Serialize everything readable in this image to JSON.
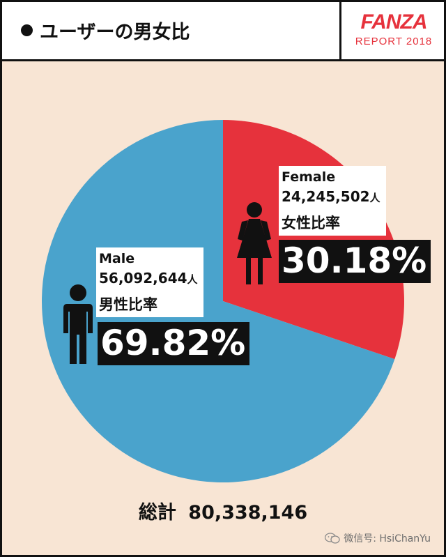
{
  "header": {
    "title": "ユーザーの男女比",
    "brand": "FANZA",
    "report": "REPORT 2018"
  },
  "colors": {
    "male": "#4aa3cc",
    "female": "#e6323c",
    "background": "#f8e5d4",
    "brand": "#e6323c"
  },
  "chart_data": {
    "type": "pie",
    "slices": [
      {
        "name": "Female",
        "label_jp": "女性比率",
        "count": "24,245,502",
        "unit": "人",
        "value": 30.18,
        "percent": "30.18%"
      },
      {
        "name": "Male",
        "label_jp": "男性比率",
        "count": "56,092,644",
        "unit": "人",
        "value": 69.82,
        "percent": "69.82%"
      }
    ],
    "start_angle_deg": 0,
    "direction": "clockwise"
  },
  "total": {
    "label": "総計",
    "value": "80,338,146"
  },
  "watermark": "微信号: HsiChanYu",
  "icons": [
    "male-figure-icon",
    "female-figure-icon",
    "wechat-icon"
  ]
}
